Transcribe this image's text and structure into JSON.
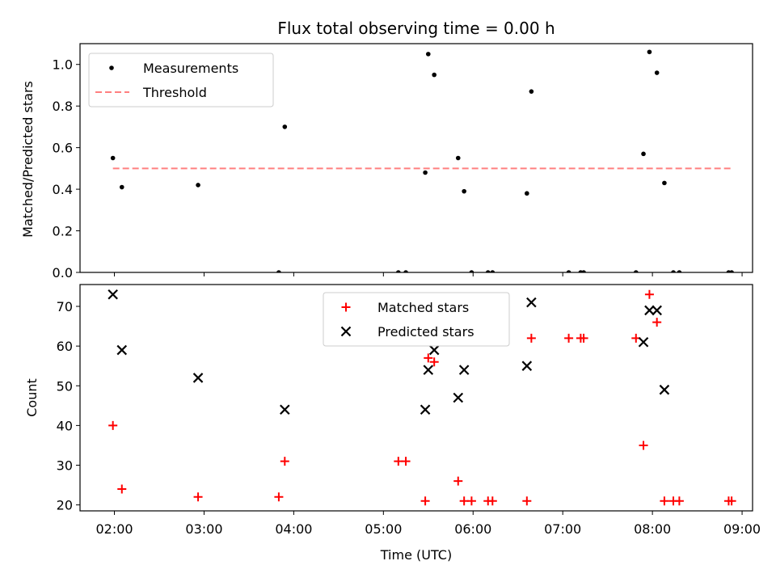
{
  "chart_data": [
    {
      "type": "scatter",
      "title": "Flux total observing time = 0.00 h",
      "xlabel": "",
      "ylabel": "Matched/Predicted stars",
      "ylim": [
        0.0,
        1.1
      ],
      "yticks": [
        0.0,
        0.2,
        0.4,
        0.6,
        0.8,
        1.0
      ],
      "ytick_labels": [
        "0.0",
        "0.2",
        "0.4",
        "0.6",
        "0.8",
        "1.0"
      ],
      "xlim": [
        "01:37",
        "09:07"
      ],
      "legend_position": "top-left",
      "series": [
        {
          "name": "Measurements",
          "marker": "dot",
          "color": "#000000",
          "points": [
            {
              "x": "01:59",
              "y": 0.55
            },
            {
              "x": "02:05",
              "y": 0.41
            },
            {
              "x": "02:56",
              "y": 0.42
            },
            {
              "x": "03:50",
              "y": 0.0
            },
            {
              "x": "03:54",
              "y": 0.7
            },
            {
              "x": "05:10",
              "y": 0.0
            },
            {
              "x": "05:15",
              "y": 0.0
            },
            {
              "x": "05:28",
              "y": 0.48
            },
            {
              "x": "05:30",
              "y": 1.05
            },
            {
              "x": "05:34",
              "y": 0.95
            },
            {
              "x": "05:50",
              "y": 0.55
            },
            {
              "x": "05:54",
              "y": 0.39
            },
            {
              "x": "05:59",
              "y": 0.0
            },
            {
              "x": "06:10",
              "y": 0.0
            },
            {
              "x": "06:13",
              "y": 0.0
            },
            {
              "x": "06:36",
              "y": 0.38
            },
            {
              "x": "06:39",
              "y": 0.87
            },
            {
              "x": "07:04",
              "y": 0.0
            },
            {
              "x": "07:12",
              "y": 0.0
            },
            {
              "x": "07:14",
              "y": 0.0
            },
            {
              "x": "07:49",
              "y": 0.0
            },
            {
              "x": "07:54",
              "y": 0.57
            },
            {
              "x": "07:58",
              "y": 1.06
            },
            {
              "x": "08:03",
              "y": 0.96
            },
            {
              "x": "08:08",
              "y": 0.43
            },
            {
              "x": "08:14",
              "y": 0.0
            },
            {
              "x": "08:18",
              "y": 0.0
            },
            {
              "x": "08:51",
              "y": 0.0
            },
            {
              "x": "08:53",
              "y": 0.0
            }
          ]
        },
        {
          "name": "Threshold",
          "type": "line",
          "style": "dashed",
          "color": "#ff8080",
          "points": [
            {
              "x": "01:59",
              "y": 0.5
            },
            {
              "x": "08:53",
              "y": 0.5
            }
          ]
        }
      ]
    },
    {
      "type": "scatter",
      "title": "",
      "xlabel": "Time (UTC)",
      "ylabel": "Count",
      "ylim": [
        18.5,
        75.5
      ],
      "yticks": [
        20,
        30,
        40,
        50,
        60,
        70
      ],
      "ytick_labels": [
        "20",
        "30",
        "40",
        "50",
        "60",
        "70"
      ],
      "xlim": [
        "01:37",
        "09:07"
      ],
      "xticks": [
        "02:00",
        "03:00",
        "04:00",
        "05:00",
        "06:00",
        "07:00",
        "08:00",
        "09:00"
      ],
      "xtick_labels": [
        "02:00",
        "03:00",
        "04:00",
        "05:00",
        "06:00",
        "07:00",
        "08:00",
        "09:00"
      ],
      "legend_position": "top-center",
      "series": [
        {
          "name": "Matched stars",
          "marker": "plus",
          "color": "#ff0000",
          "points": [
            {
              "x": "01:59",
              "y": 40
            },
            {
              "x": "02:05",
              "y": 24
            },
            {
              "x": "02:56",
              "y": 22
            },
            {
              "x": "03:50",
              "y": 22
            },
            {
              "x": "03:54",
              "y": 31
            },
            {
              "x": "05:10",
              "y": 31
            },
            {
              "x": "05:15",
              "y": 31
            },
            {
              "x": "05:28",
              "y": 21
            },
            {
              "x": "05:30",
              "y": 57
            },
            {
              "x": "05:34",
              "y": 56
            },
            {
              "x": "05:50",
              "y": 26
            },
            {
              "x": "05:54",
              "y": 21
            },
            {
              "x": "05:59",
              "y": 21
            },
            {
              "x": "06:10",
              "y": 21
            },
            {
              "x": "06:13",
              "y": 21
            },
            {
              "x": "06:36",
              "y": 21
            },
            {
              "x": "06:39",
              "y": 62
            },
            {
              "x": "07:04",
              "y": 62
            },
            {
              "x": "07:12",
              "y": 62
            },
            {
              "x": "07:14",
              "y": 62
            },
            {
              "x": "07:49",
              "y": 62
            },
            {
              "x": "07:54",
              "y": 35
            },
            {
              "x": "07:58",
              "y": 73
            },
            {
              "x": "08:03",
              "y": 66
            },
            {
              "x": "08:08",
              "y": 21
            },
            {
              "x": "08:14",
              "y": 21
            },
            {
              "x": "08:18",
              "y": 21
            },
            {
              "x": "08:51",
              "y": 21
            },
            {
              "x": "08:53",
              "y": 21
            }
          ]
        },
        {
          "name": "Predicted stars",
          "marker": "x",
          "color": "#000000",
          "points": [
            {
              "x": "01:59",
              "y": 73
            },
            {
              "x": "02:05",
              "y": 59
            },
            {
              "x": "02:56",
              "y": 52
            },
            {
              "x": "03:54",
              "y": 44
            },
            {
              "x": "05:28",
              "y": 44
            },
            {
              "x": "05:30",
              "y": 54
            },
            {
              "x": "05:34",
              "y": 59
            },
            {
              "x": "05:50",
              "y": 47
            },
            {
              "x": "05:54",
              "y": 54
            },
            {
              "x": "06:36",
              "y": 55
            },
            {
              "x": "06:39",
              "y": 71
            },
            {
              "x": "07:54",
              "y": 61
            },
            {
              "x": "07:58",
              "y": 69
            },
            {
              "x": "08:03",
              "y": 69
            },
            {
              "x": "08:08",
              "y": 49
            }
          ]
        }
      ]
    }
  ]
}
